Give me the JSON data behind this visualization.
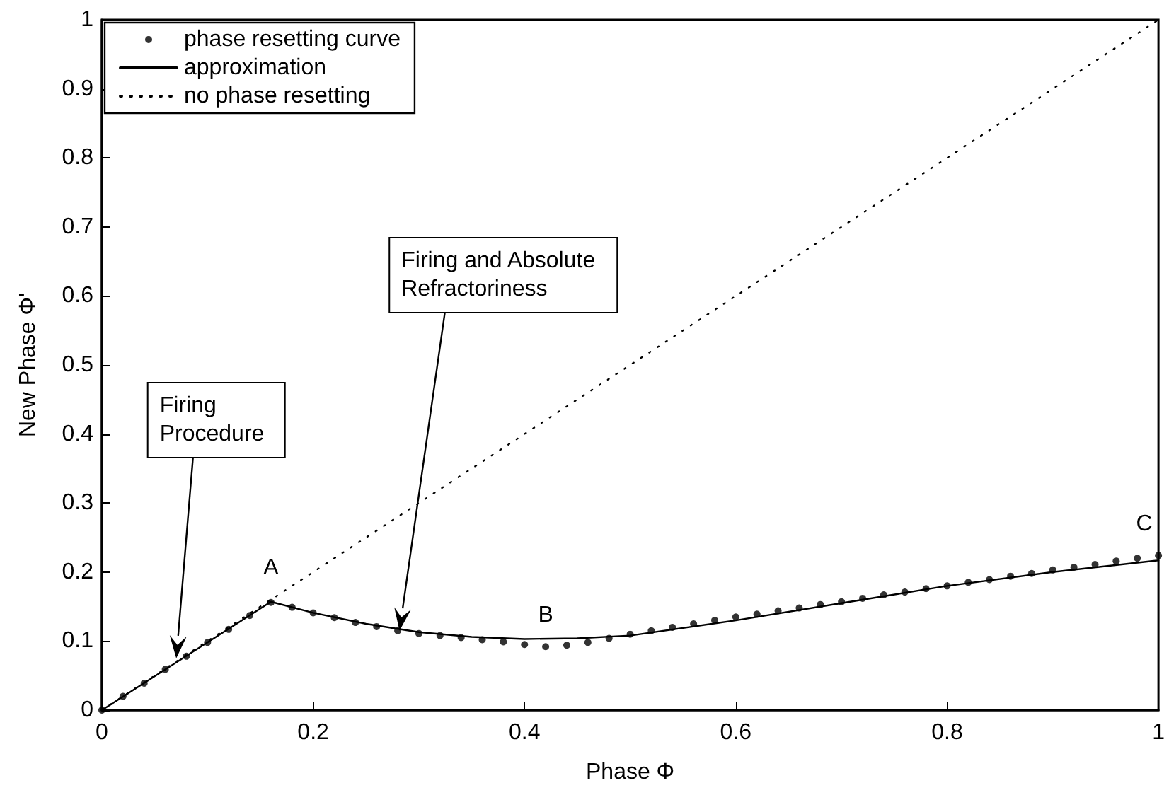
{
  "chart_data": {
    "type": "line",
    "xlabel": "Phase Φ",
    "ylabel": "New Phase Φ'",
    "xlim": [
      0,
      1
    ],
    "ylim": [
      0,
      1
    ],
    "xticks": [
      0,
      0.2,
      0.4,
      0.6,
      0.8,
      1
    ],
    "yticks": [
      0,
      0.1,
      0.2,
      0.3,
      0.4,
      0.5,
      0.6,
      0.7,
      0.8,
      0.9,
      1
    ],
    "grid": false,
    "legend": "top left",
    "series": [
      {
        "name": "phase resetting curve",
        "type": "scatter",
        "marker": "circle",
        "color": "#000000",
        "x": [
          0,
          0.02,
          0.04,
          0.06,
          0.08,
          0.1,
          0.12,
          0.14,
          0.16,
          0.18,
          0.2,
          0.22,
          0.24,
          0.26,
          0.28,
          0.3,
          0.32,
          0.34,
          0.36,
          0.38,
          0.4,
          0.42,
          0.44,
          0.46,
          0.48,
          0.5,
          0.52,
          0.54,
          0.56,
          0.58,
          0.6,
          0.62,
          0.64,
          0.66,
          0.68,
          0.7,
          0.72,
          0.74,
          0.76,
          0.78,
          0.8,
          0.82,
          0.84,
          0.86,
          0.88,
          0.9,
          0.92,
          0.94,
          0.96,
          0.98,
          1
        ],
        "values": [
          0,
          0.02,
          0.039,
          0.059,
          0.078,
          0.098,
          0.117,
          0.137,
          0.156,
          0.149,
          0.141,
          0.134,
          0.127,
          0.121,
          0.115,
          0.111,
          0.108,
          0.105,
          0.102,
          0.099,
          0.095,
          0.092,
          0.094,
          0.098,
          0.104,
          0.11,
          0.115,
          0.12,
          0.125,
          0.13,
          0.135,
          0.139,
          0.144,
          0.148,
          0.153,
          0.157,
          0.162,
          0.167,
          0.171,
          0.176,
          0.18,
          0.185,
          0.189,
          0.194,
          0.198,
          0.203,
          0.207,
          0.211,
          0.216,
          0.22,
          0.224
        ]
      },
      {
        "name": "approximation",
        "marker": "none",
        "line_style": "solid",
        "color": "#000000",
        "x": [
          0,
          0.16,
          0.2,
          0.25,
          0.3,
          0.35,
          0.4,
          0.45,
          0.5,
          0.6,
          0.7,
          0.8,
          0.9,
          1
        ],
        "values": [
          0,
          0.157,
          0.141,
          0.125,
          0.113,
          0.106,
          0.103,
          0.104,
          0.108,
          0.13,
          0.155,
          0.18,
          0.2,
          0.217
        ]
      },
      {
        "name": "no phase resetting",
        "marker": "none",
        "line_style": "dotted",
        "color": "#000000",
        "x": [
          0,
          1
        ],
        "values": [
          0,
          1
        ]
      }
    ],
    "annotations": [
      "Firing Procedure",
      "Firing and Absolute Refractoriness",
      {
        "text": "A",
        "x": 0.16,
        "y": 0.157
      },
      {
        "text": "B",
        "x": 0.42,
        "y": 0.092
      },
      {
        "text": "C",
        "x": 1,
        "y": 0.224
      }
    ]
  }
}
